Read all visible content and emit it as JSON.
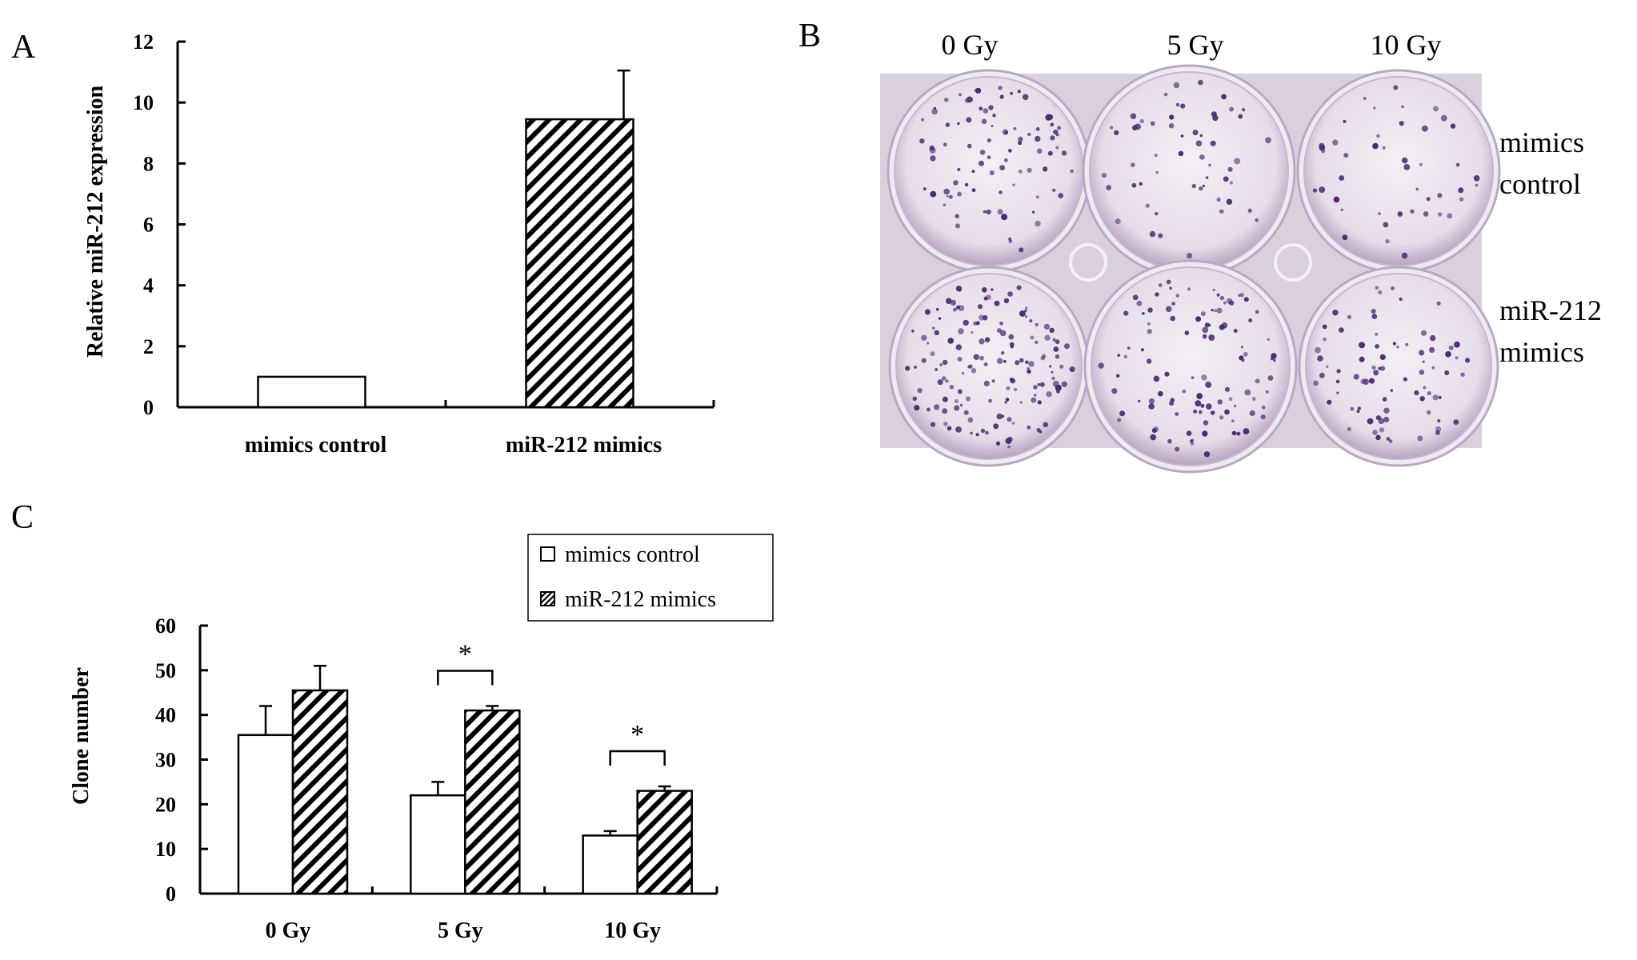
{
  "panels": {
    "a": {
      "letter": "A"
    },
    "b": {
      "letter": "B"
    },
    "c": {
      "letter": "C"
    }
  },
  "photo": {
    "dose_labels": [
      "0 Gy",
      "5 Gy",
      "10 Gy"
    ],
    "row_labels": [
      [
        "mimics",
        "control"
      ],
      [
        "miR-212",
        "mimics"
      ]
    ],
    "colors": {
      "background": "#d9cfdd",
      "well": "#ece6ef",
      "colony": "#4a2a70"
    }
  },
  "chart_data": [
    {
      "type": "bar",
      "categories": [
        "mimics control",
        "miR-212 mimics"
      ],
      "values": [
        1.0,
        9.45
      ],
      "errors": [
        0,
        1.6
      ],
      "xlabel": "",
      "ylabel": "Relative miR-212 expression",
      "ylim": [
        0,
        12
      ],
      "yticks": [
        0,
        2,
        4,
        6,
        8,
        10,
        12
      ],
      "fills": [
        "open",
        "hatched"
      ],
      "grid": false
    },
    {
      "type": "bar",
      "categories": [
        "0 Gy",
        "5 Gy",
        "10 Gy"
      ],
      "series": [
        {
          "name": "mimics control",
          "values": [
            35.5,
            22,
            13
          ],
          "errors": [
            6.5,
            3,
            1
          ],
          "fill": "open"
        },
        {
          "name": "miR-212 mimics",
          "values": [
            45.5,
            41,
            23
          ],
          "errors": [
            5.5,
            1,
            1
          ],
          "fill": "hatched"
        }
      ],
      "xlabel": "",
      "ylabel": "Clone number",
      "ylim": [
        0,
        60
      ],
      "yticks": [
        0,
        10,
        20,
        30,
        40,
        50,
        60
      ],
      "significance": [
        {
          "category": "5 Gy",
          "label": "*"
        },
        {
          "category": "10 Gy",
          "label": "*"
        }
      ],
      "legend_position": "top-right",
      "grid": false
    }
  ]
}
